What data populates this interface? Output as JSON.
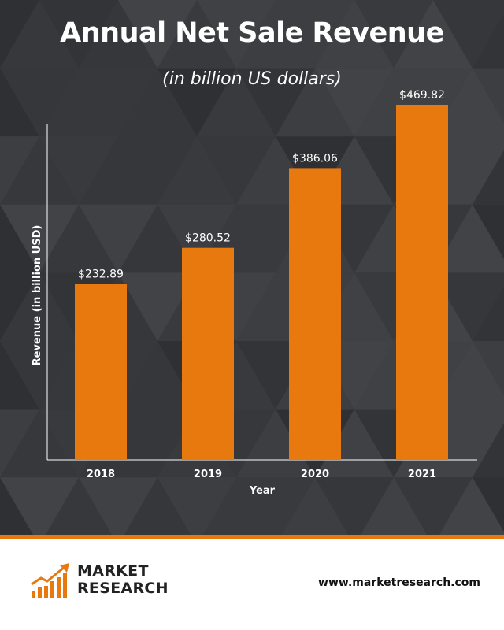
{
  "header": {
    "title": "Annual Net Sale Revenue",
    "subtitle": "(in billion US dollars)"
  },
  "colors": {
    "background": "#3a3b3e",
    "bar": "#e8790f",
    "text": "#ffffff",
    "accent": "#e8790f"
  },
  "chart_data": {
    "type": "bar",
    "title": "Annual Net Sale Revenue",
    "subtitle": "(in billion US dollars)",
    "categories": [
      "2018",
      "2019",
      "2020",
      "2021"
    ],
    "values": [
      232.89,
      280.52,
      386.06,
      469.82
    ],
    "data_labels": [
      "$232.89",
      "$280.52",
      "$386.06",
      "$469.82"
    ],
    "xlabel": "Year",
    "ylabel": "Revenue (in billion USD)",
    "ylim": [
      0,
      500
    ],
    "grid": false,
    "legend": "none"
  },
  "footer": {
    "logo_line1": "MARKET",
    "logo_line2": "RESEARCH",
    "website": "www.marketresearch.com"
  }
}
